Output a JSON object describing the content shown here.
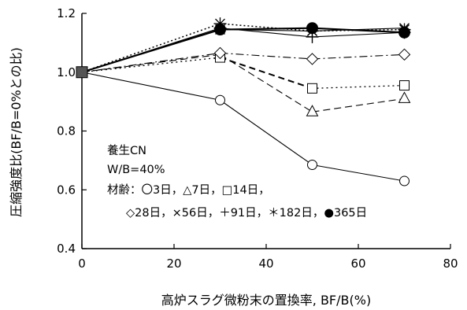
{
  "chart_data": {
    "type": "line",
    "xlabel": "高炉スラグ微粉末の置換率, BF/B(%)",
    "ylabel": "圧縮強度比(BF/B=0%との比)",
    "xlim": [
      0,
      80
    ],
    "ylim": [
      0.4,
      1.2
    ],
    "xticks": [
      0,
      20,
      40,
      60,
      80
    ],
    "yticks": [
      0.4,
      0.6,
      0.8,
      1.0,
      1.2
    ],
    "xtick_labels": [
      "0",
      "20",
      "40",
      "60",
      "80"
    ],
    "ytick_labels": [
      "0.4",
      "0.6",
      "0.8",
      "1.0",
      "1.2"
    ],
    "grid": false,
    "x": [
      0,
      30,
      50,
      70
    ],
    "series": [
      {
        "marker": "circle-open",
        "line": "solid",
        "values": [
          1.0,
          0.905,
          0.685,
          0.63
        ]
      },
      {
        "marker": "triangle-open",
        "line": "dashed",
        "values": [
          1.0,
          1.06,
          0.865,
          0.91
        ]
      },
      {
        "marker": "square-open",
        "line": "bold-dashed-dotted",
        "values": [
          1.0,
          1.05,
          0.945,
          0.955
        ]
      },
      {
        "marker": "diamond-open",
        "line": "dashdot",
        "values": [
          1.0,
          1.065,
          1.045,
          1.06
        ]
      },
      {
        "marker": "x",
        "line": "solid",
        "values": [
          1.0,
          1.145,
          1.14,
          1.15
        ]
      },
      {
        "marker": "plus",
        "line": "solid",
        "values": [
          1.0,
          1.15,
          1.12,
          1.135
        ]
      },
      {
        "marker": "asterisk",
        "line": "dotted",
        "values": [
          1.0,
          1.165,
          1.14,
          1.145
        ]
      },
      {
        "marker": "circle-filled",
        "line": "bold-solid",
        "values": [
          1.0,
          1.145,
          1.15,
          1.135
        ]
      }
    ],
    "legend": {
      "placement": "inside-lower-left",
      "line1": "養生CN",
      "line2": "W/B=40%",
      "line3": "材齢：〇3日，△7日，□14日，",
      "line4": "◇28日，×56日，＋91日，＊182日，●365日"
    }
  }
}
